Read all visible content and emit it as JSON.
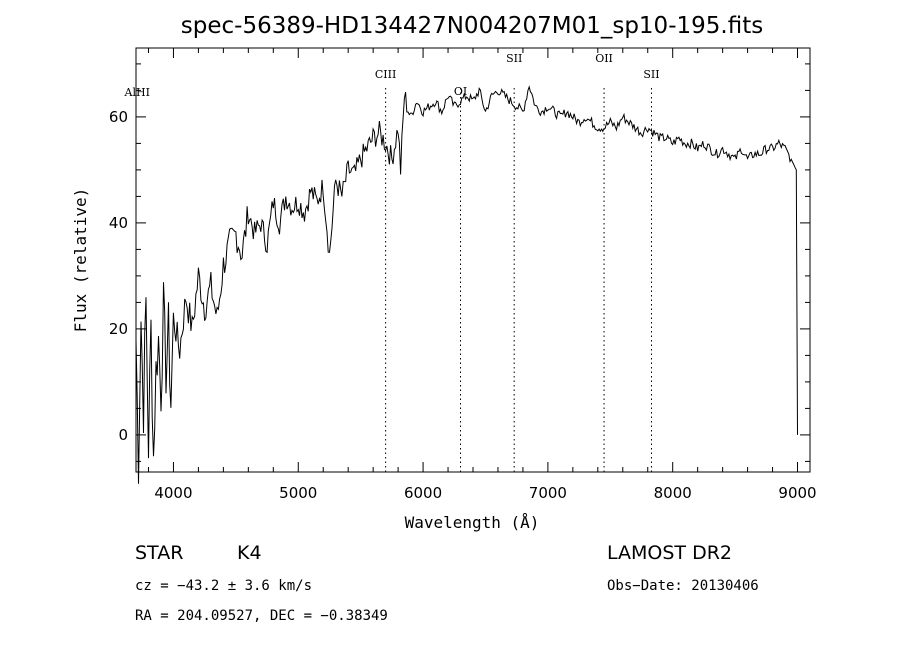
{
  "chart_data": {
    "type": "line",
    "title": "spec-56389-HD134427N004207M01_sp10-195.fits",
    "xlabel": "Wavelength (Å)",
    "ylabel": "Flux (relative)",
    "xlim": [
      3700,
      9100
    ],
    "ylim": [
      -7,
      73
    ],
    "x_ticks": [
      4000,
      5000,
      6000,
      7000,
      8000,
      9000
    ],
    "y_ticks": [
      0,
      20,
      40,
      60
    ],
    "grid": false,
    "legend": "none",
    "series": [
      {
        "x": [
          3700,
          3720,
          3740,
          3760,
          3780,
          3800,
          3820,
          3840,
          3860,
          3880,
          3900,
          3920,
          3940,
          3960,
          3980,
          4000,
          4050,
          4100,
          4150,
          4200,
          4250,
          4300,
          4350,
          4400,
          4450,
          4500,
          4550,
          4600,
          4650,
          4700,
          4750,
          4800,
          4850,
          4900,
          4950,
          5000,
          5050,
          5100,
          5150,
          5200,
          5250,
          5300,
          5350,
          5400,
          5450,
          5500,
          5550,
          5600,
          5650,
          5700,
          5750,
          5800,
          5820,
          5850,
          5900,
          5950,
          6000,
          6050,
          6100,
          6150,
          6200,
          6250,
          6300,
          6350,
          6400,
          6450,
          6500,
          6550,
          6600,
          6650,
          6700,
          6750,
          6800,
          6850,
          6900,
          6950,
          7000,
          7050,
          7100,
          7150,
          7200,
          7250,
          7300,
          7350,
          7400,
          7450,
          7500,
          7550,
          7600,
          7650,
          7700,
          7750,
          7800,
          7850,
          7900,
          7950,
          8000,
          8050,
          8100,
          8150,
          8200,
          8250,
          8300,
          8350,
          8400,
          8450,
          8500,
          8550,
          8600,
          8650,
          8700,
          8750,
          8800,
          8850,
          8900,
          8950,
          8990,
          8995,
          9000
        ],
        "y": [
          18,
          -5,
          22,
          5,
          25,
          -2,
          20,
          -4,
          12,
          18,
          8,
          24,
          12,
          20,
          6,
          22,
          16,
          26,
          20,
          30,
          24,
          28,
          22,
          32,
          36,
          38,
          34,
          42,
          38,
          40,
          36,
          44,
          40,
          45,
          43,
          44,
          42,
          46,
          44,
          47,
          34,
          48,
          45,
          50,
          49,
          52,
          54,
          56,
          57,
          55,
          52,
          58,
          50,
          64,
          60,
          63,
          61,
          62,
          63,
          61,
          64,
          62,
          63,
          64,
          63,
          65,
          61,
          64,
          65,
          64,
          63,
          62,
          61,
          66,
          62,
          61,
          62,
          61,
          60,
          61,
          60,
          59,
          60,
          59,
          58,
          58,
          59,
          58,
          60,
          59,
          58,
          57,
          58,
          57,
          56,
          56,
          55,
          56,
          55,
          55,
          54,
          55,
          54,
          53,
          54,
          53,
          52,
          54,
          52,
          53,
          53,
          54,
          54,
          55,
          54,
          52,
          50,
          25,
          0
        ]
      }
    ],
    "annotations": [
      {
        "label": "AlHI",
        "x": 3710
      },
      {
        "label": "CIII",
        "x": 5700
      },
      {
        "label": "OI",
        "x": 6300
      },
      {
        "label": "SII",
        "x": 6730
      },
      {
        "label": "OII",
        "x": 7450
      },
      {
        "label": "SII",
        "x": 7830
      }
    ]
  },
  "info": {
    "object_type": "STAR",
    "spectral_class": "K4",
    "survey": "LAMOST DR2",
    "redshift": "cz = −43.2 ± 3.6 km/s",
    "obs_date": "Obs−Date: 20130406",
    "coords": "RA = 204.09527, DEC =  −0.38349"
  }
}
